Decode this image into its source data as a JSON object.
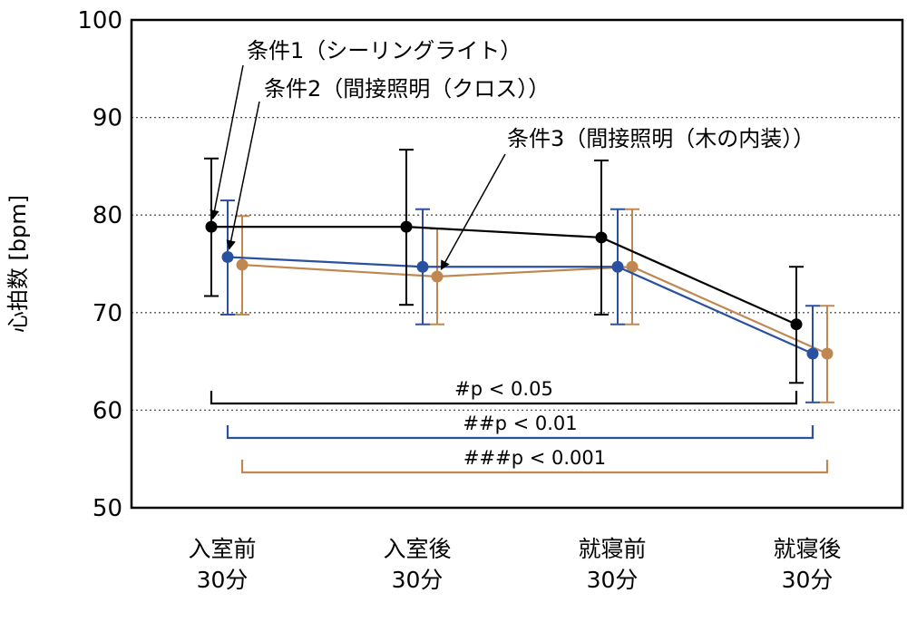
{
  "chart_data": {
    "type": "line",
    "ylabel": "心拍数 [bpm]",
    "ylim": [
      50,
      100
    ],
    "yticks": [
      50,
      60,
      70,
      80,
      90,
      100
    ],
    "grid": true,
    "categories": [
      [
        "入室前",
        "30分"
      ],
      [
        "入室後",
        "30分"
      ],
      [
        "就寝前",
        "30分"
      ],
      [
        "就寝後",
        "30分"
      ]
    ],
    "series": [
      {
        "name": "条件1（シーリングライト）",
        "color": "#000000",
        "values": [
          78.8,
          78.8,
          77.7,
          68.8
        ],
        "err_low": [
          71.7,
          70.8,
          69.8,
          62.8
        ],
        "err_high": [
          85.8,
          86.7,
          85.6,
          74.7
        ]
      },
      {
        "name": "条件2（間接照明（クロス））",
        "color": "#2a50a0",
        "values": [
          75.7,
          74.7,
          74.7,
          65.8
        ],
        "err_low": [
          69.8,
          68.8,
          68.8,
          60.8
        ],
        "err_high": [
          81.5,
          80.6,
          80.6,
          70.7
        ]
      },
      {
        "name": "条件3（間接照明（木の内装））",
        "color": "#c08850",
        "values": [
          74.9,
          73.7,
          74.7,
          65.8
        ],
        "err_low": [
          69.8,
          68.8,
          68.8,
          60.8
        ],
        "err_high": [
          79.9,
          78.6,
          80.6,
          70.7
        ]
      }
    ],
    "significance": [
      {
        "label": "#p < 0.05",
        "color": "#000000",
        "from": 0,
        "to": 3
      },
      {
        "label": "##p < 0.01",
        "color": "#2a50a0",
        "from": 0,
        "to": 3
      },
      {
        "label": "###p < 0.001",
        "color": "#c08850",
        "from": 0,
        "to": 3
      }
    ]
  }
}
